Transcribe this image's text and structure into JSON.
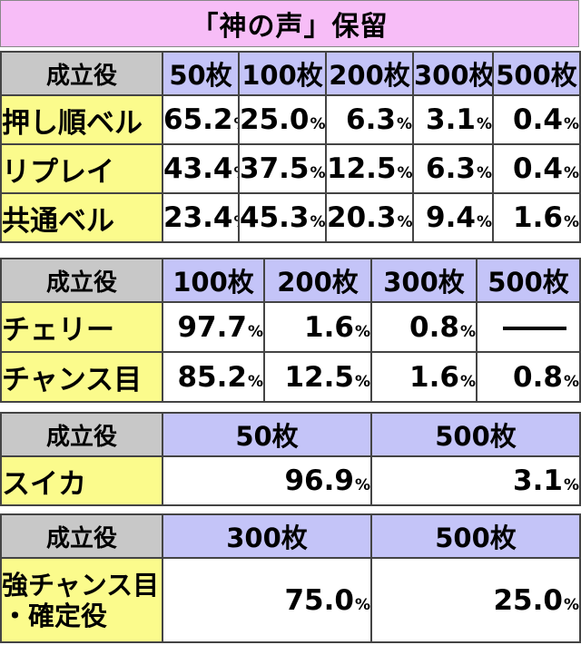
{
  "title": "「神の声」保留",
  "header_label": "成立役",
  "table1": {
    "columns": [
      "50枚",
      "100枚",
      "200枚",
      "300枚",
      "500枚"
    ],
    "rows": [
      {
        "label": "押し順ベル",
        "values": [
          "65.2",
          "25.0",
          "6.3",
          "3.1",
          "0.4"
        ]
      },
      {
        "label": "リプレイ",
        "values": [
          "43.4",
          "37.5",
          "12.5",
          "6.3",
          "0.4"
        ]
      },
      {
        "label": "共通ベル",
        "values": [
          "23.4",
          "45.3",
          "20.3",
          "9.4",
          "1.6"
        ]
      }
    ]
  },
  "table2": {
    "columns": [
      "100枚",
      "200枚",
      "300枚",
      "500枚"
    ],
    "rows": [
      {
        "label": "チェリー",
        "values": [
          "97.7",
          "1.6",
          "0.8",
          null
        ]
      },
      {
        "label": "チャンス目",
        "values": [
          "85.2",
          "12.5",
          "1.6",
          "0.8"
        ]
      }
    ]
  },
  "table3": {
    "columns": [
      "50枚",
      "500枚"
    ],
    "rows": [
      {
        "label": "スイカ",
        "values": [
          "96.9",
          "3.1"
        ]
      }
    ]
  },
  "table4": {
    "columns": [
      "300枚",
      "500枚"
    ],
    "rows": [
      {
        "label_line1": "強チャンス目",
        "label_line2": "・確定役",
        "values": [
          "75.0",
          "25.0"
        ]
      }
    ]
  },
  "percent_sign": "%"
}
